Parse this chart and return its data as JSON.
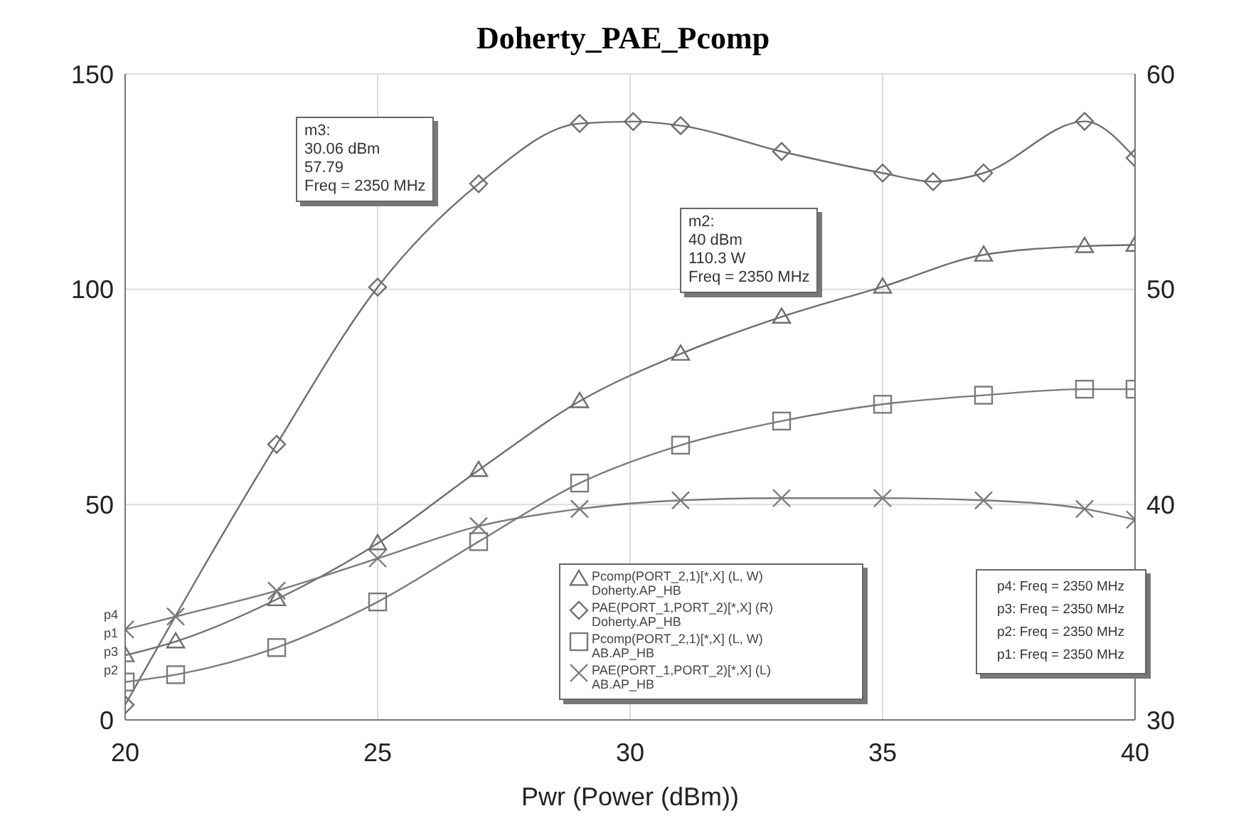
{
  "chart_data": {
    "type": "line",
    "title": "Doherty_PAE_Pcomp",
    "xlabel": "Pwr (Power (dBm))",
    "xlim": [
      20,
      40
    ],
    "xticks": [
      20,
      25,
      30,
      35,
      40
    ],
    "ylim": [
      0,
      150
    ],
    "yticks": [
      0,
      50,
      100,
      150
    ],
    "y2lim": [
      30,
      60
    ],
    "y2ticks": [
      30,
      40,
      50,
      60
    ],
    "grid": true,
    "legend": "bottom",
    "line_style": "solid",
    "series": [
      {
        "name": "Pcomp(PORT_2,1)[*,X] (L, W)\nDoherty.AP_HB",
        "color": "#6e6e6e",
        "marker": "triangle",
        "x": [
          20,
          21,
          23,
          25,
          27,
          29,
          31,
          33,
          35,
          37,
          39,
          40
        ],
        "values": [
          15,
          18.2,
          28,
          41,
          58,
          74,
          85,
          93.6,
          100.6,
          108,
          110,
          110.3
        ]
      },
      {
        "name": "PAE(PORT_1,PORT_2)[*,X] (R)\nDoherty.AP_HB",
        "color": "#6e6e6e",
        "marker": "diamond",
        "axis": "y2",
        "x": [
          20,
          23,
          25,
          27,
          29,
          30.06,
          31,
          33,
          35,
          36,
          37,
          39,
          40
        ],
        "values": [
          30.7,
          42.8,
          50.1,
          54.9,
          57.7,
          57.79,
          57.6,
          56.4,
          55.4,
          55,
          55.4,
          57.8,
          56.1
        ]
      },
      {
        "name": "Pcomp(PORT_2,1)[*,X] (L, W)\nAB.AP_HB",
        "color": "#7a7a7a",
        "marker": "square",
        "x": [
          20,
          21,
          23,
          25,
          27,
          29,
          31,
          33,
          35,
          37,
          39,
          40
        ],
        "values": [
          8.8,
          10.5,
          16.8,
          27.4,
          41.4,
          55,
          63.8,
          69.4,
          73.3,
          75.4,
          76.8,
          76.8
        ]
      },
      {
        "name": "PAE(PORT_1,PORT_2)[*,X] (L)\nAB.AP_HB",
        "color": "#7a7a7a",
        "marker": "cross",
        "axis": "y2",
        "x": [
          20,
          21,
          23,
          25,
          27,
          29,
          31,
          33,
          35,
          37,
          39,
          40
        ],
        "values": [
          34.2,
          34.8,
          36,
          37.5,
          39,
          39.8,
          40.2,
          40.3,
          40.3,
          40.2,
          39.8,
          39.3
        ]
      }
    ],
    "annotations": [
      "m3:\n30.06 dBm\n57.79\nFreq = 2350 MHz",
      "m2:\n40 dBm\n110.3 W\nFreq = 2350 MHz",
      "p4: Freq = 2350 MHz\np3: Freq = 2350 MHz\np2: Freq = 2350 MHz\np1: Freq = 2350 MHz",
      "p4",
      "p1",
      "p3",
      "p2"
    ]
  }
}
